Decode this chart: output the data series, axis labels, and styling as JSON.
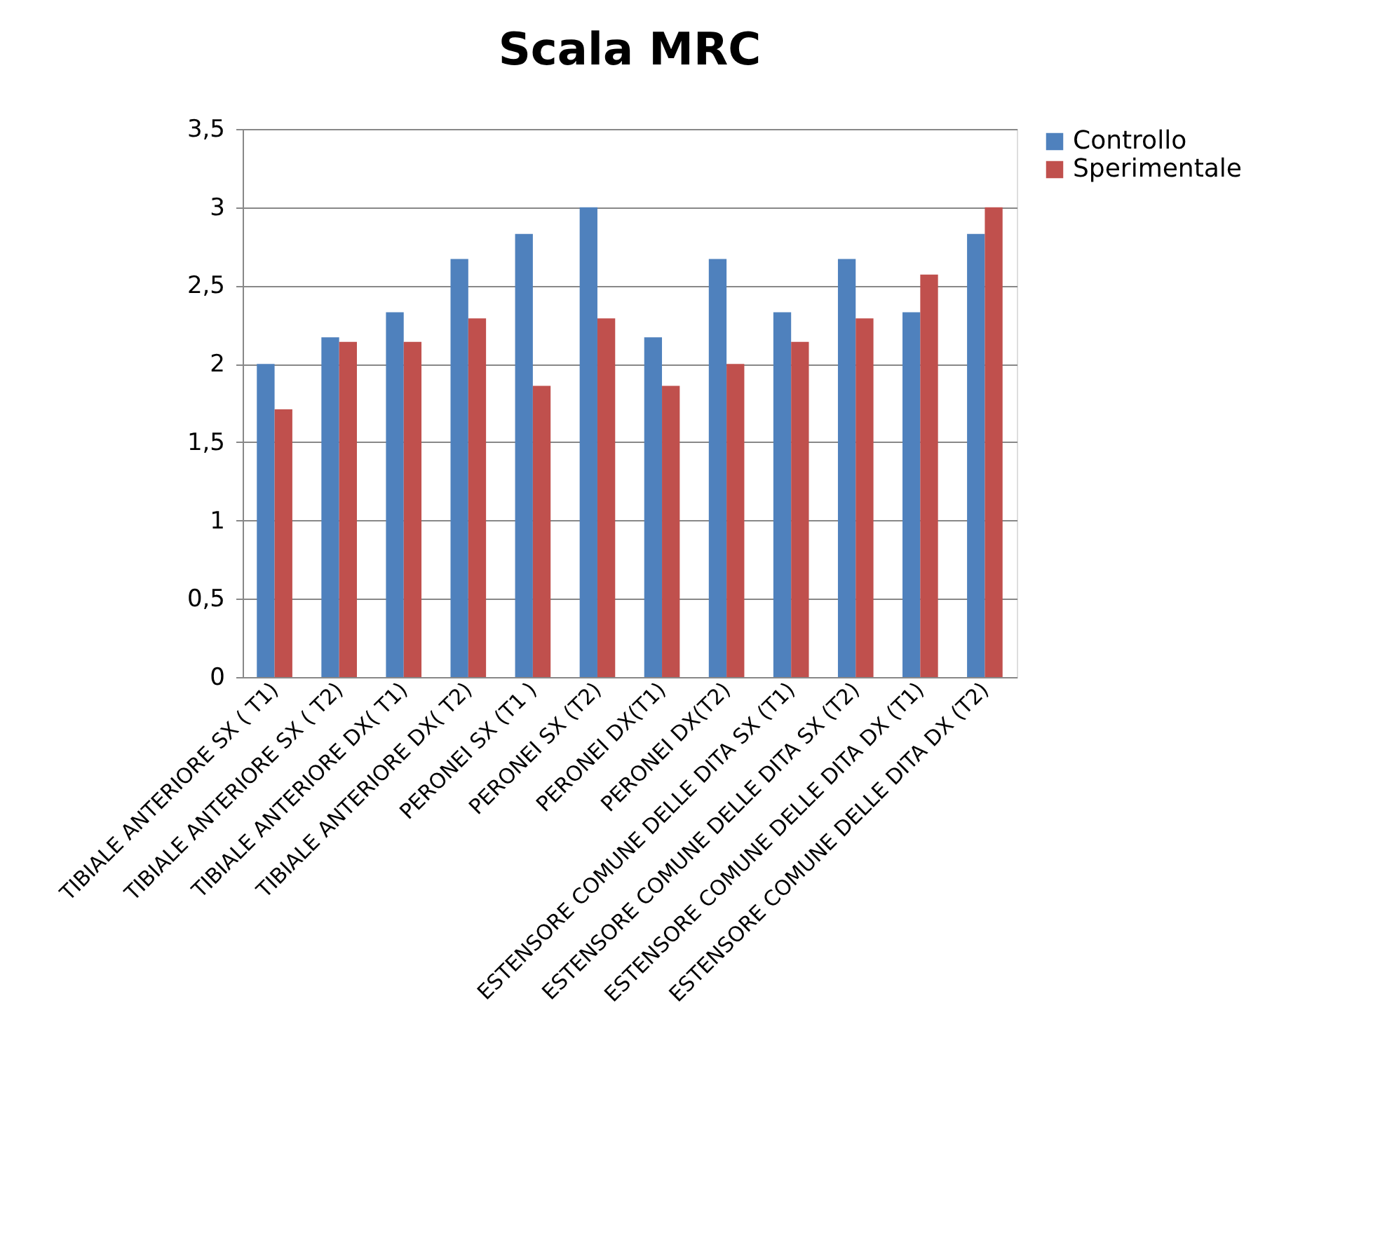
{
  "chart_data": {
    "type": "bar",
    "title": "Scala MRC",
    "categories": [
      "TIBIALE ANTERIORE SX ( T1)",
      "TIBIALE ANTERIORE SX ( T2)",
      "TIBIALE ANTERIORE DX( T1)",
      "TIBIALE ANTERIORE DX( T2)",
      "PERONEI SX    (T1 )",
      "PERONEI SX    (T2)",
      "PERONEI DX(T1)",
      "PERONEI DX(T2)",
      "ESTENSORE COMUNE DELLE DITA SX (T1)",
      "ESTENSORE COMUNE DELLE DITA SX (T2)",
      "ESTENSORE COMUNE DELLE DITA DX (T1)",
      "ESTENSORE COMUNE DELLE DITA DX (T2)"
    ],
    "series": [
      {
        "name": "Controllo",
        "color": "#4f81bd",
        "values": [
          2,
          2.17,
          2.33,
          2.67,
          2.83,
          3,
          2.17,
          2.67,
          2.33,
          2.67,
          2.33,
          2.83
        ]
      },
      {
        "name": "Sperimentale",
        "color": "#c0504d",
        "values": [
          1.71,
          2.14,
          2.14,
          2.29,
          1.86,
          2.29,
          1.86,
          2,
          2.14,
          2.29,
          2.57,
          3
        ]
      }
    ],
    "ylim": [
      0,
      3.5
    ],
    "yticks": [
      0,
      {
        "value": 0.5,
        "label": "0,5"
      },
      1,
      {
        "value": 1.5,
        "label": "1,5"
      },
      2,
      {
        "value": 2.5,
        "label": "2,5"
      },
      3,
      {
        "value": 3.5,
        "label": "3,5"
      }
    ],
    "grid": "y",
    "legend": "right"
  }
}
